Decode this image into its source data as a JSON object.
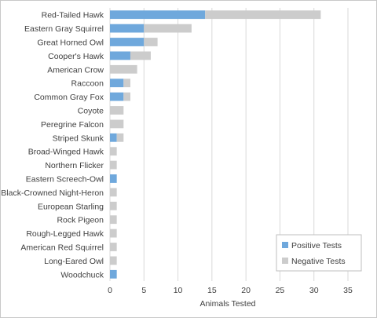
{
  "chart_data": {
    "type": "bar",
    "orientation": "horizontal",
    "stacked": true,
    "title": "",
    "xlabel": "Animals Tested",
    "ylabel": "",
    "xlim": [
      0,
      35
    ],
    "xticks": [
      "0",
      "5",
      "10",
      "15",
      "20",
      "25",
      "30",
      "35"
    ],
    "grid": true,
    "legend_position": "bottom-right",
    "categories": [
      "Red-Tailed Hawk",
      "Eastern Gray Squirrel",
      "Great Horned Owl",
      "Cooper's Hawk",
      "American Crow",
      "Raccoon",
      "Common Gray Fox",
      "Coyote",
      "Peregrine Falcon",
      "Striped Skunk",
      "Broad-Winged Hawk",
      "Northern Flicker",
      "Eastern Screech-Owl",
      "Black-Crowned Night-Heron",
      "European Starling",
      "Rock Pigeon",
      "Rough-Legged Hawk",
      "American Red Squirrel",
      "Long-Eared Owl",
      "Woodchuck"
    ],
    "series": [
      {
        "name": "Positive Tests",
        "color": "#6fa8dc",
        "values": [
          14,
          5,
          5,
          3,
          0,
          2,
          2,
          0,
          0,
          1,
          0,
          0,
          1,
          0,
          0,
          0,
          0,
          0,
          0,
          1
        ]
      },
      {
        "name": "Negative Tests",
        "color": "#cccccc",
        "values": [
          17,
          7,
          2,
          3,
          4,
          1,
          1,
          2,
          2,
          1,
          1,
          1,
          0,
          1,
          1,
          1,
          1,
          1,
          1,
          0
        ]
      }
    ]
  }
}
